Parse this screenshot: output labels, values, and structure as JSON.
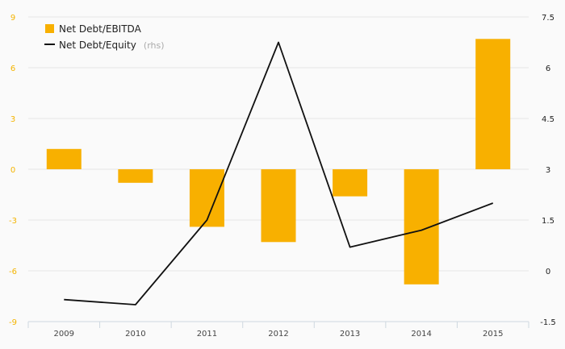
{
  "chart_data": {
    "type": "bar",
    "categories": [
      "2009",
      "2010",
      "2011",
      "2012",
      "2013",
      "2014",
      "2015"
    ],
    "series": [
      {
        "name": "Net Debt/EBITDA",
        "type": "bar",
        "axis": "left",
        "color": "#f8b000",
        "values": [
          1.2,
          -0.8,
          -3.4,
          -4.3,
          -1.6,
          -6.8,
          7.7
        ]
      },
      {
        "name": "Net Debt/Equity",
        "name_suffix": "(rhs)",
        "type": "line",
        "axis": "right",
        "color": "#111111",
        "values": [
          -0.85,
          -1.0,
          1.5,
          6.75,
          0.7,
          1.2,
          2.0
        ]
      }
    ],
    "y_left": {
      "ticks": [
        "9",
        "6",
        "3",
        "0",
        "-3",
        "-6",
        "-9"
      ],
      "ylim": [
        -9,
        9
      ],
      "color": "#f4b400"
    },
    "y_right": {
      "ticks": [
        "7.5",
        "6",
        "4.5",
        "3",
        "1.5",
        "0",
        "-1.5"
      ],
      "ylim": [
        -1.5,
        7.5
      ]
    },
    "grid": true,
    "legend_position": "top-left"
  }
}
